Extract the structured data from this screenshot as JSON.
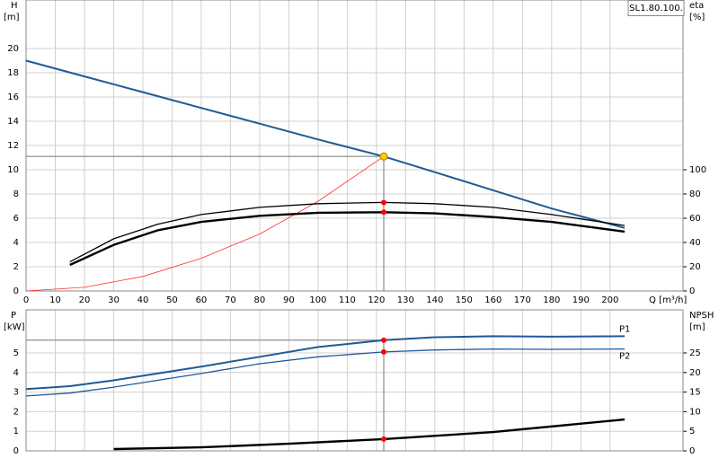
{
  "chart_data": [
    {
      "type": "line",
      "title": "SL1.80.100.",
      "x_label": "Q [m³/h]",
      "y_label": "H",
      "y_unit": "[m]",
      "y2_label": "eta",
      "y2_unit": "[%]",
      "xlim": [
        0,
        225
      ],
      "xticks": [
        0,
        10,
        20,
        30,
        40,
        50,
        60,
        70,
        80,
        90,
        100,
        110,
        120,
        130,
        140,
        150,
        160,
        170,
        180,
        190,
        200
      ],
      "xtick_labels": true,
      "ylim": [
        0,
        24
      ],
      "yticks": [
        0,
        2,
        4,
        6,
        8,
        10,
        12,
        14,
        16,
        18,
        20
      ],
      "y2lim": [
        0,
        240
      ],
      "y2ticks": [
        0,
        20,
        40,
        60,
        80,
        100
      ],
      "grid": true,
      "series": [
        {
          "color": "#1f5a96",
          "line_width": 2,
          "x": [
            0,
            20,
            40,
            60,
            80,
            100,
            122.5,
            140,
            160,
            180,
            205
          ],
          "values": [
            19,
            17.7,
            16.4,
            15.1,
            13.8,
            12.5,
            11.1,
            9.8,
            8.3,
            6.8,
            5.2
          ]
        },
        {
          "color": "#ff3030",
          "line_width": 0.8,
          "x": [
            0,
            20,
            40,
            60,
            80,
            100,
            122.5
          ],
          "values": [
            0,
            0.3,
            1.2,
            2.7,
            4.7,
            7.4,
            11.1
          ]
        },
        {
          "color": "#000000",
          "line_width": 1.3,
          "axis": "y2",
          "x": [
            15,
            30,
            45,
            60,
            80,
            100,
            122.5,
            140,
            160,
            180,
            205
          ],
          "values": [
            24,
            43,
            55,
            63,
            69,
            72,
            73,
            72,
            69,
            63,
            54
          ]
        },
        {
          "color": "#000000",
          "line_width": 2.4,
          "axis": "y2",
          "x": [
            15,
            30,
            45,
            60,
            80,
            100,
            122.5,
            140,
            160,
            180,
            205
          ],
          "values": [
            21.5,
            38,
            50,
            57,
            62,
            64.5,
            65,
            64,
            61,
            57,
            49
          ]
        }
      ],
      "points": [
        {
          "x": 122.5,
          "value": 11.1,
          "color": "#ffcc00"
        },
        {
          "x": 122.5,
          "value": 73,
          "axis": "y2",
          "color": "#ff0000"
        },
        {
          "x": 122.5,
          "value": 65,
          "axis": "y2",
          "color": "#ff0000"
        }
      ]
    },
    {
      "type": "line",
      "y_label": "P",
      "y_unit": "[kW]",
      "y2_label": "NPSH",
      "y2_unit": "[m]",
      "xlim": [
        0,
        225
      ],
      "xticks": [
        0,
        10,
        20,
        30,
        40,
        50,
        60,
        70,
        80,
        90,
        100,
        110,
        120,
        130,
        140,
        150,
        160,
        170,
        180,
        190,
        200
      ],
      "xtick_labels": false,
      "ylim": [
        0,
        7.2
      ],
      "yticks": [
        0,
        1,
        2,
        3,
        4,
        5
      ],
      "y2lim": [
        0,
        36
      ],
      "y2ticks": [
        0,
        5,
        10,
        15,
        20,
        25
      ],
      "grid": true,
      "series": [
        {
          "name": "P1",
          "color": "#1f5a96",
          "line_width": 2,
          "x": [
            0,
            15,
            30,
            45,
            60,
            80,
            100,
            122.5,
            140,
            160,
            180,
            205
          ],
          "values": [
            3.15,
            3.3,
            3.6,
            3.95,
            4.3,
            4.8,
            5.3,
            5.65,
            5.8,
            5.85,
            5.83,
            5.85
          ]
        },
        {
          "name": "P2",
          "color": "#1f5a96",
          "line_width": 1.3,
          "x": [
            0,
            15,
            30,
            45,
            60,
            80,
            100,
            122.5,
            140,
            160,
            180,
            205
          ],
          "values": [
            2.8,
            2.95,
            3.25,
            3.6,
            3.95,
            4.45,
            4.8,
            5.05,
            5.15,
            5.2,
            5.18,
            5.2
          ]
        },
        {
          "color": "#000000",
          "line_width": 2.4,
          "axis": "y2",
          "x": [
            30,
            60,
            90,
            122.5,
            160,
            205
          ],
          "values": [
            0.45,
            0.9,
            1.8,
            3,
            4.8,
            8
          ]
        }
      ],
      "points": [
        {
          "x": 122.5,
          "value": 5.65,
          "color": "#ff0000"
        },
        {
          "x": 122.5,
          "value": 5.05,
          "color": "#ff0000"
        },
        {
          "x": 122.5,
          "value": 3,
          "axis": "y2",
          "color": "#ff0000"
        }
      ]
    }
  ]
}
